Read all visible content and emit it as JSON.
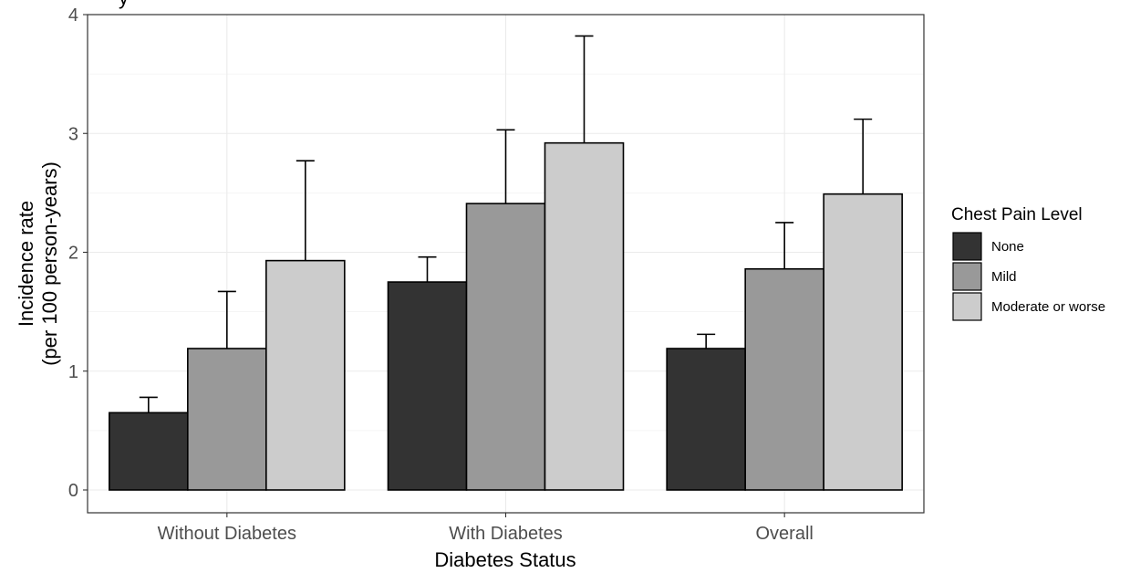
{
  "chart_data": {
    "type": "bar",
    "title": "",
    "partial_title_text": "y",
    "xlabel": "Diabetes Status",
    "ylabel_line1": "Incidence rate",
    "ylabel_line2": "(per 100 person-years)",
    "ylim": [
      -0.15,
      4.0
    ],
    "yticks": [
      0,
      1,
      2,
      3,
      4
    ],
    "ytick_labels": [
      "0",
      "1",
      "2",
      "3",
      "4"
    ],
    "categories": [
      "Without Diabetes",
      "With Diabetes",
      "Overall"
    ],
    "grid": true,
    "legend": {
      "title": "Chest Pain Level",
      "position": "right"
    },
    "series": [
      {
        "name": "None",
        "color": "#333333",
        "values": [
          0.65,
          1.75,
          1.19
        ],
        "error_upper": [
          0.78,
          1.96,
          1.31
        ]
      },
      {
        "name": "Mild",
        "color": "#999999",
        "values": [
          1.19,
          2.41,
          1.86
        ],
        "error_upper": [
          1.67,
          3.03,
          2.25
        ]
      },
      {
        "name": "Moderate or worse",
        "color": "#cccccc",
        "values": [
          1.93,
          2.92,
          2.49
        ],
        "error_upper": [
          2.77,
          3.82,
          3.12
        ]
      }
    ]
  }
}
